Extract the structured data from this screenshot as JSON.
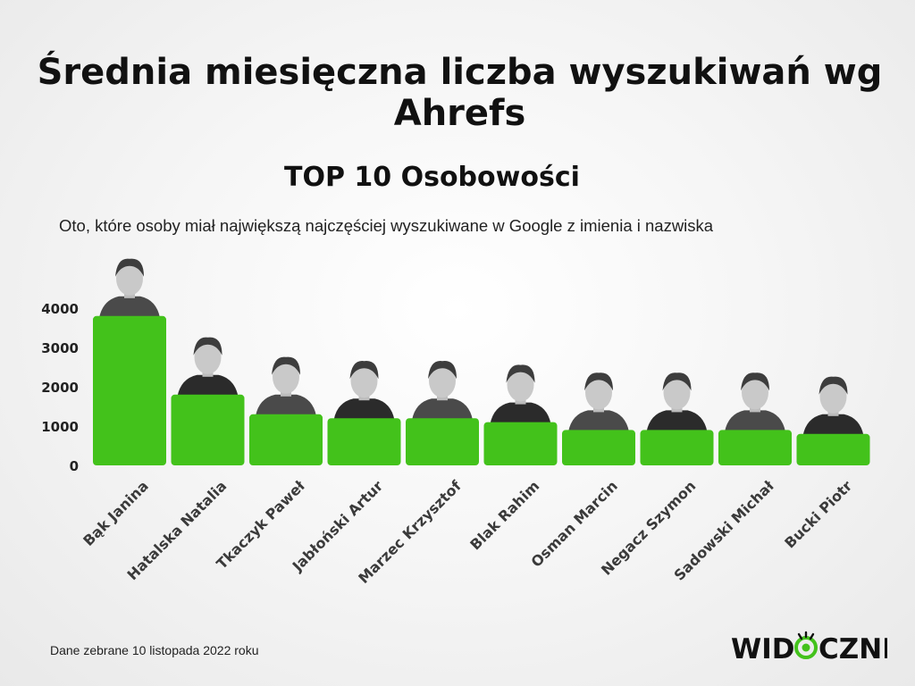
{
  "chart_data": {
    "type": "bar",
    "title": "Średnia miesięczna liczba wyszukiwań wg Ahrefs",
    "subtitle": "TOP 10 Osobowości",
    "description": "Oto, które osoby miał największą najczęściej wyszukiwane w Google z imienia i nazwiska",
    "categories": [
      "Bąk Janina",
      "Hatalska Natalia",
      "Tkaczyk Paweł",
      "Jabłoński Artur",
      "Marzec Krzysztof",
      "Blak Rahim",
      "Osman Marcin",
      "Negacz Szymon",
      "Sadowski Michał",
      "Bucki Piotr"
    ],
    "values": [
      3800,
      1800,
      1300,
      1200,
      1200,
      1100,
      900,
      900,
      900,
      800
    ],
    "yticks": [
      0,
      1000,
      2000,
      3000,
      4000
    ],
    "ylim": [
      0,
      4000
    ],
    "bar_color": "#43c21b",
    "grid": false
  },
  "footnote": "Dane zebrane 10 listopada 2022 roku",
  "logo": {
    "text_left": "WID",
    "text_right": "CZNI",
    "icon": "eye-icon",
    "icon_color": "#43c21b"
  }
}
